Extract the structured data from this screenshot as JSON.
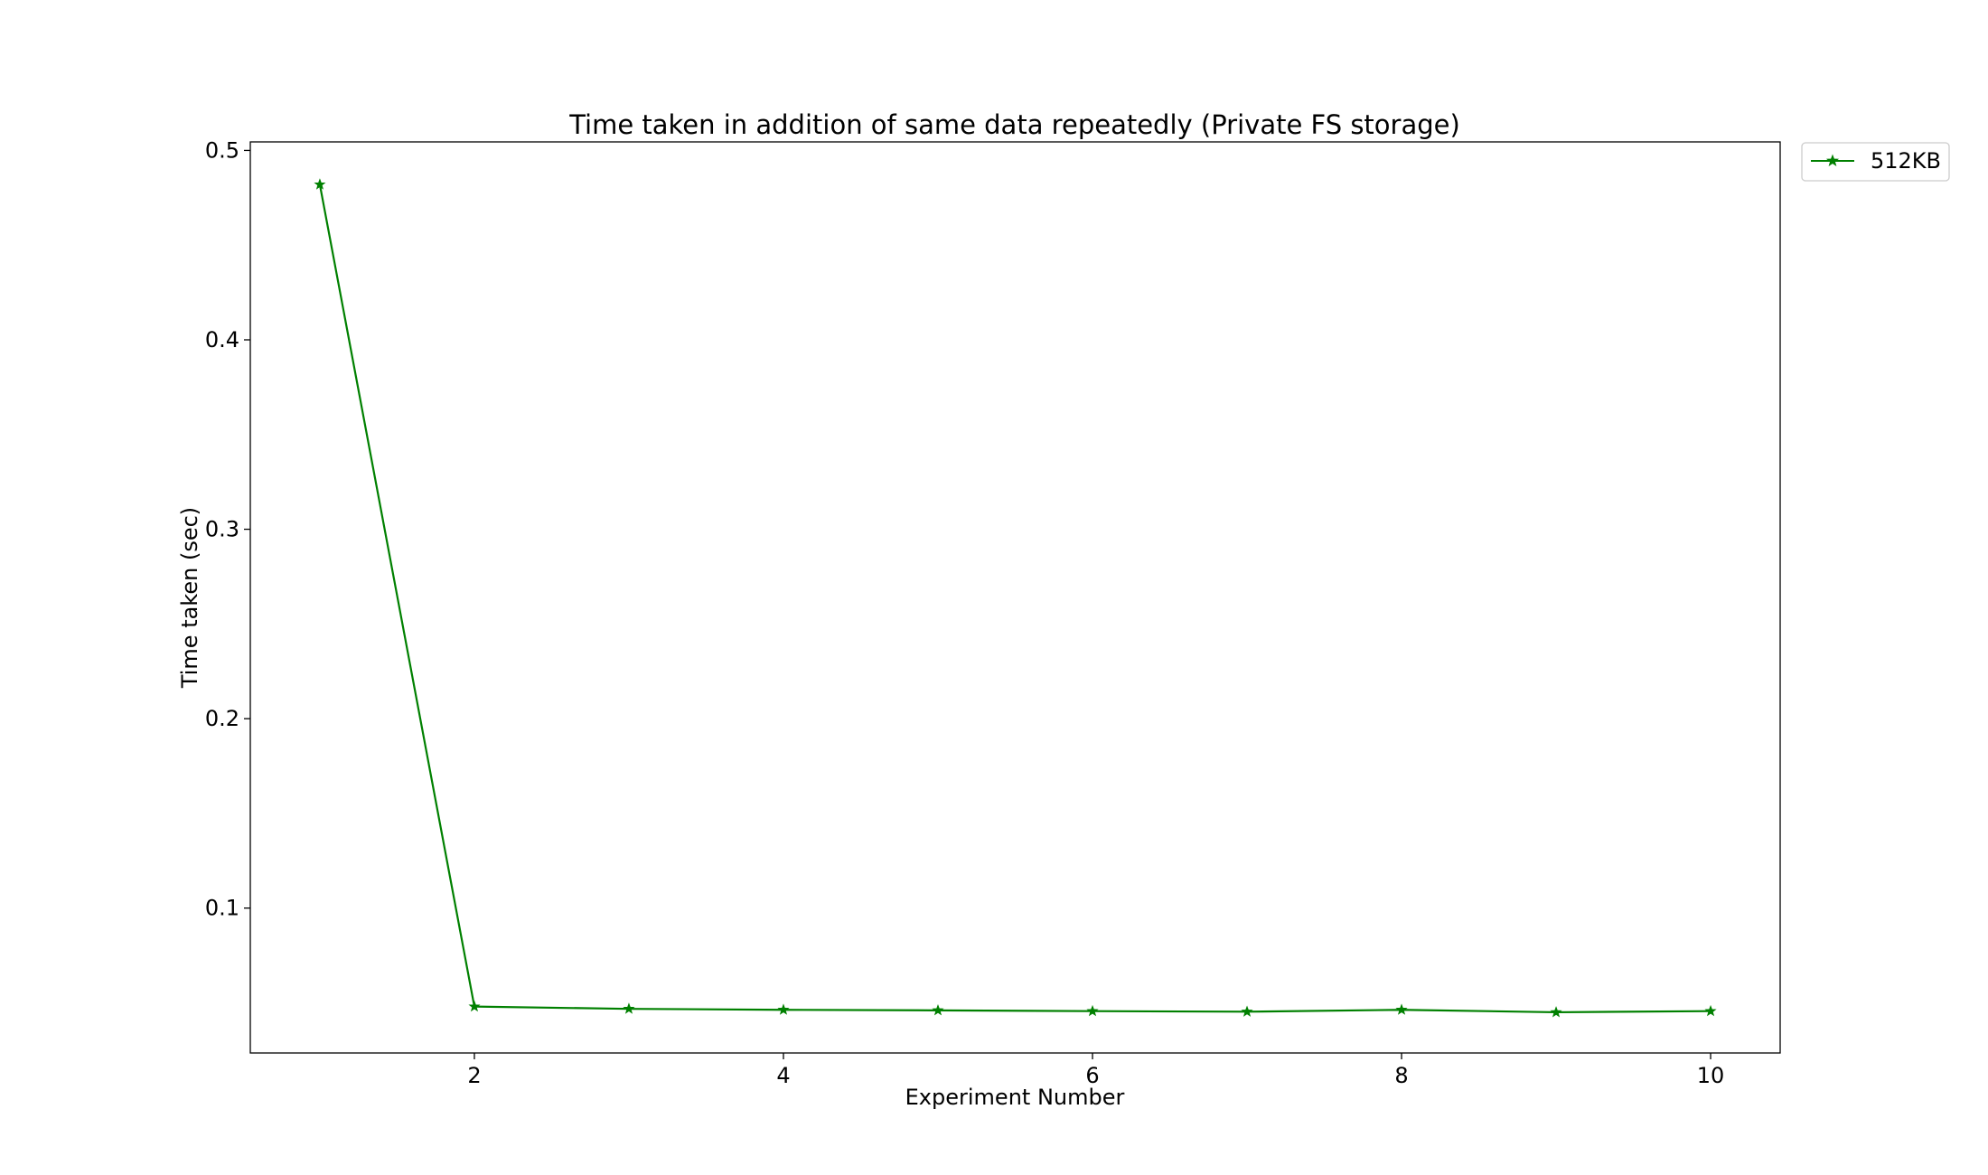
{
  "chart_data": {
    "type": "line",
    "title": "Time taken in addition of same data repeatedly (Private FS storage)",
    "xlabel": "Experiment Number",
    "ylabel": "Time taken (sec)",
    "x": [
      1,
      2,
      3,
      4,
      5,
      6,
      7,
      8,
      9,
      10
    ],
    "series": [
      {
        "name": "512KB",
        "color": "#008000",
        "marker": "star",
        "values": [
          0.482,
          0.048,
          0.0468,
          0.0463,
          0.046,
          0.0456,
          0.0453,
          0.0463,
          0.045,
          0.0456
        ]
      }
    ],
    "xlim": [
      0.55,
      10.45
    ],
    "ylim": [
      0.0235,
      0.5045
    ],
    "xticks": [
      2,
      4,
      6,
      8,
      10
    ],
    "xtick_labels": [
      "2",
      "4",
      "6",
      "8",
      "10"
    ],
    "yticks": [
      0.1,
      0.2,
      0.3,
      0.4,
      0.5
    ],
    "ytick_labels": [
      "0.1",
      "0.2",
      "0.3",
      "0.4",
      "0.5"
    ],
    "grid": false,
    "legend_position": "outside-top-right"
  }
}
